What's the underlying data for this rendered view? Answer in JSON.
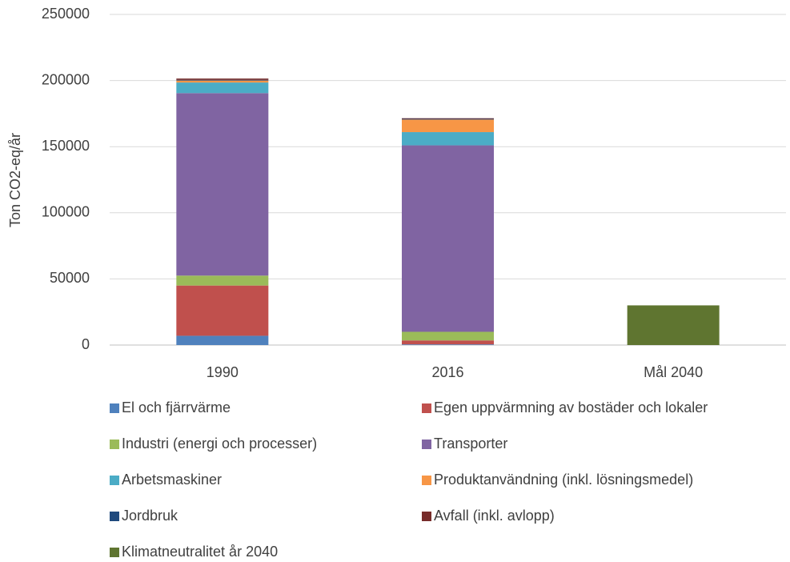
{
  "chart_data": {
    "type": "stacked_bar",
    "y_label": "Ton CO2-eq/år",
    "categories": [
      "1990",
      "2016",
      "Mål 2040"
    ],
    "ylim": [
      0,
      250000
    ],
    "yticks": [
      0,
      50000,
      100000,
      150000,
      200000,
      250000
    ],
    "grid": true,
    "series": [
      {
        "name": "El och fjärrvärme",
        "color": "#4f81bd",
        "values": [
          7000,
          500,
          0
        ]
      },
      {
        "name": "Egen uppvärmning av bostäder och lokaler",
        "color": "#c0504d",
        "values": [
          38000,
          3000,
          0
        ]
      },
      {
        "name": "Industri (energi och processer)",
        "color": "#9bbb59",
        "values": [
          7500,
          6500,
          0
        ]
      },
      {
        "name": "Transporter",
        "color": "#8064a2",
        "values": [
          138000,
          141000,
          0
        ]
      },
      {
        "name": "Arbetsmaskiner",
        "color": "#4bacc6",
        "values": [
          8000,
          10000,
          0
        ]
      },
      {
        "name": "Produktanvändning (inkl. lösningsmedel)",
        "color": "#f79646",
        "values": [
          1500,
          9500,
          0
        ]
      },
      {
        "name": "Jordbruk",
        "color": "#1f497d",
        "values": [
          500,
          500,
          0
        ]
      },
      {
        "name": "Avfall (inkl. avlopp)",
        "color": "#772c2a",
        "values": [
          1000,
          500,
          0
        ]
      },
      {
        "name": "Klimatneutralitet år 2040",
        "color": "#5f7530",
        "values": [
          0,
          0,
          30000
        ]
      }
    ]
  }
}
